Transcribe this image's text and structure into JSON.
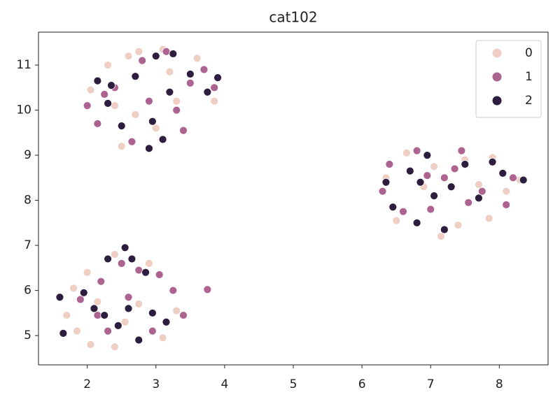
{
  "chart_data": {
    "type": "scatter",
    "title": "cat102",
    "xlim": [
      1.29,
      8.71
    ],
    "ylim": [
      4.35,
      11.73
    ],
    "xticks": [
      2,
      3,
      4,
      5,
      6,
      7,
      8
    ],
    "yticks": [
      5,
      6,
      7,
      8,
      9,
      10,
      11
    ],
    "legend": "upper right",
    "series": [
      {
        "name": "0",
        "color": "#efcfc4",
        "x": [
          2.3,
          2.6,
          2.75,
          3.1,
          2.05,
          2.4,
          2.7,
          3.0,
          3.3,
          3.6,
          3.85,
          2.5,
          3.2,
          1.8,
          2.0,
          2.4,
          1.85,
          2.05,
          2.4,
          2.75,
          3.1,
          3.3,
          2.55,
          1.7,
          2.9,
          2.15,
          6.35,
          6.65,
          7.05,
          7.5,
          7.9,
          8.1,
          7.85,
          7.4,
          7.15,
          6.5,
          6.9,
          8.3,
          7.7
        ],
        "y": [
          11.0,
          11.2,
          11.3,
          11.35,
          10.45,
          10.1,
          9.9,
          9.6,
          10.2,
          11.15,
          10.2,
          9.2,
          10.85,
          6.05,
          6.4,
          6.8,
          5.1,
          4.8,
          4.75,
          5.7,
          4.95,
          5.55,
          5.3,
          5.45,
          6.6,
          5.75,
          8.5,
          9.05,
          8.75,
          8.9,
          8.95,
          8.2,
          7.6,
          7.45,
          7.2,
          7.55,
          8.3,
          8.45,
          8.35
        ]
      },
      {
        "name": "1",
        "color": "#ad6390",
        "x": [
          2.0,
          2.15,
          2.4,
          2.8,
          3.15,
          3.3,
          3.5,
          3.7,
          2.65,
          3.4,
          2.9,
          2.25,
          3.85,
          1.65,
          1.9,
          2.2,
          2.5,
          2.75,
          3.05,
          3.25,
          3.4,
          3.75,
          2.3,
          2.6,
          2.95,
          2.15,
          6.3,
          6.6,
          6.8,
          7.2,
          7.45,
          7.75,
          8.1,
          8.2,
          7.0,
          7.55,
          6.4,
          7.35,
          6.95
        ],
        "y": [
          10.1,
          9.7,
          10.5,
          11.1,
          11.3,
          10.0,
          10.6,
          10.9,
          9.3,
          9.55,
          10.2,
          10.35,
          10.5,
          5.05,
          5.8,
          6.2,
          6.6,
          6.45,
          6.35,
          6.0,
          5.45,
          6.02,
          5.1,
          5.85,
          5.1,
          5.45,
          8.2,
          7.75,
          9.1,
          8.5,
          9.1,
          8.2,
          7.9,
          8.5,
          7.8,
          7.95,
          8.8,
          8.7,
          8.55
        ]
      },
      {
        "name": "2",
        "color": "#2d1d3f",
        "x": [
          2.15,
          2.35,
          2.7,
          3.0,
          3.25,
          3.5,
          3.9,
          2.95,
          3.1,
          2.9,
          3.2,
          2.3,
          3.75,
          2.5,
          1.6,
          1.65,
          1.95,
          2.1,
          2.25,
          2.3,
          2.55,
          2.65,
          2.85,
          2.95,
          3.15,
          2.45,
          2.75,
          2.6,
          6.35,
          6.45,
          6.7,
          6.85,
          6.95,
          7.05,
          7.2,
          7.3,
          7.5,
          7.7,
          7.9,
          8.05,
          8.35,
          6.8
        ],
        "y": [
          10.65,
          10.55,
          10.75,
          11.2,
          11.25,
          10.8,
          10.72,
          9.75,
          9.35,
          9.15,
          10.4,
          10.15,
          10.4,
          9.65,
          5.85,
          5.05,
          5.95,
          5.6,
          5.45,
          6.7,
          6.95,
          6.7,
          6.4,
          5.5,
          5.3,
          5.22,
          4.9,
          5.6,
          8.4,
          7.85,
          8.65,
          8.4,
          9.0,
          8.1,
          7.35,
          8.3,
          8.8,
          8.05,
          8.85,
          8.6,
          8.45,
          7.5
        ]
      }
    ]
  }
}
